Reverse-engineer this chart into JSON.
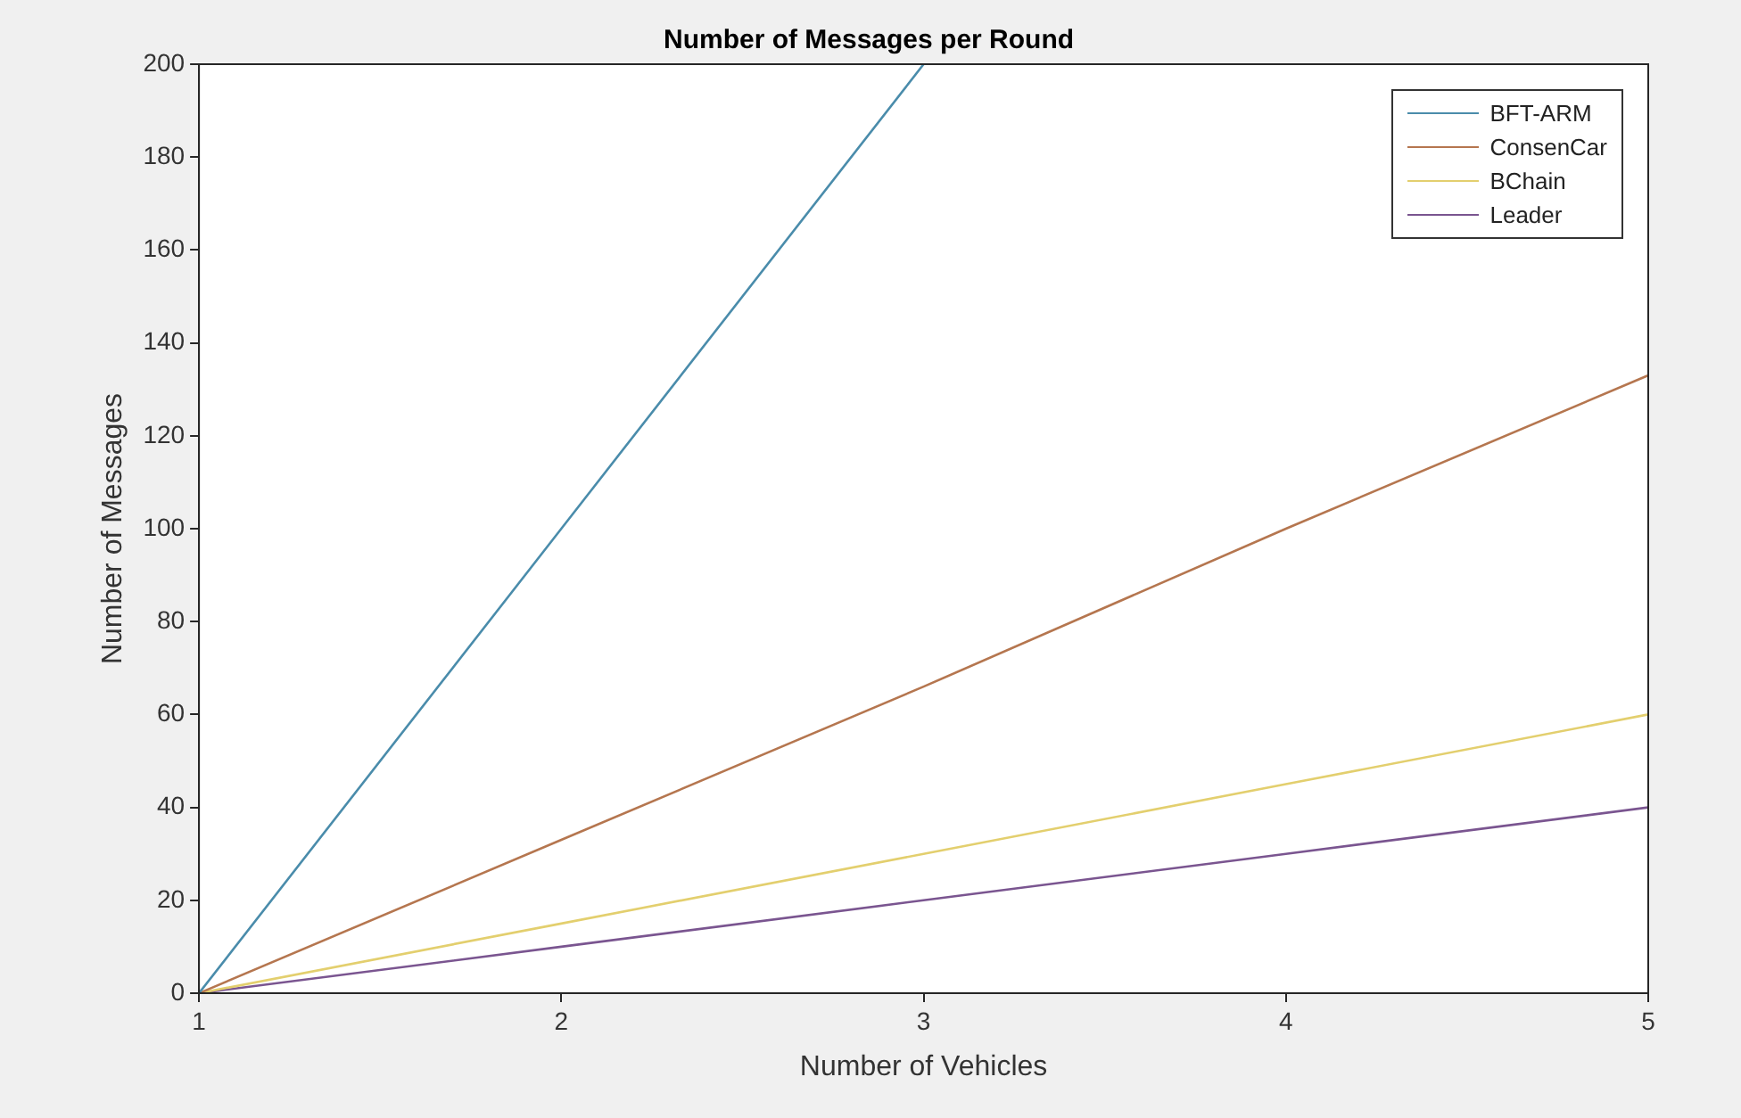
{
  "chart_data": {
    "type": "line",
    "title": "Number of Messages per Round",
    "xlabel": "Number of Vehicles",
    "ylabel": "Number of Messages",
    "x": [
      1,
      2,
      3,
      4,
      5
    ],
    "series": [
      {
        "name": "BFT-ARM",
        "color": "#4a8cab",
        "x": [
          1,
          2,
          3
        ],
        "values": [
          0,
          100,
          200
        ]
      },
      {
        "name": "ConsenCar",
        "color": "#b5764f",
        "values": [
          0,
          33,
          66,
          100,
          133
        ]
      },
      {
        "name": "BChain",
        "color": "#e3cf6e",
        "values": [
          0,
          15,
          30,
          45,
          60
        ]
      },
      {
        "name": "Leader",
        "color": "#7a5590",
        "values": [
          0,
          10,
          20,
          30,
          40
        ]
      }
    ],
    "xlim": [
      1,
      5
    ],
    "xticks": [
      1,
      2,
      3,
      4,
      5
    ],
    "ylim": [
      0,
      200
    ],
    "yticks": [
      0,
      20,
      40,
      60,
      80,
      100,
      120,
      140,
      160,
      180,
      200
    ],
    "grid": false,
    "legend": "top right",
    "marker": "none",
    "line_style": "solid"
  }
}
